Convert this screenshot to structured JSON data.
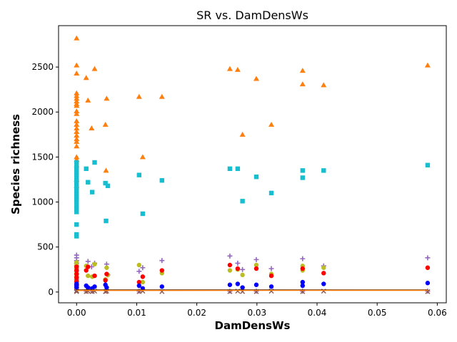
{
  "chart_data": {
    "type": "scatter",
    "title": "SR vs. DamDensWs",
    "xlabel": "DamDensWs",
    "ylabel": "Species richness",
    "xlim": [
      -0.003,
      0.0615
    ],
    "ylim": [
      -120,
      2960
    ],
    "xticks": [
      0.0,
      0.01,
      0.02,
      0.03,
      0.04,
      0.05,
      0.06
    ],
    "xtick_labels": [
      "0.00",
      "0.01",
      "0.02",
      "0.03",
      "0.04",
      "0.05",
      "0.06"
    ],
    "yticks": [
      0,
      500,
      1000,
      1500,
      2000,
      2500
    ],
    "ytick_labels": [
      "0",
      "500",
      "1000",
      "1500",
      "2000",
      "2500"
    ],
    "grid": false,
    "legend": false,
    "series": [
      {
        "color": "#ff7f0e",
        "marker": "triangle",
        "points": [
          [
            0.0,
            2820
          ],
          [
            0.0,
            2520
          ],
          [
            0.0,
            2430
          ],
          [
            0.0,
            2210
          ],
          [
            0.0,
            2180
          ],
          [
            0.0,
            2150
          ],
          [
            0.0,
            2120
          ],
          [
            0.0,
            2090
          ],
          [
            0.0,
            2070
          ],
          [
            0.0,
            2010
          ],
          [
            0.0,
            1980
          ],
          [
            0.0,
            1900
          ],
          [
            0.0,
            1860
          ],
          [
            0.0,
            1820
          ],
          [
            0.0,
            1780
          ],
          [
            0.0,
            1740
          ],
          [
            0.0,
            1700
          ],
          [
            0.0,
            1670
          ],
          [
            0.0,
            1620
          ],
          [
            0.0,
            1500
          ],
          [
            0.0,
            1470
          ],
          [
            0.0,
            1410
          ],
          [
            0.0,
            1250
          ],
          [
            0.0,
            1180
          ],
          [
            0.0016,
            2380
          ],
          [
            0.0019,
            2130
          ],
          [
            0.0025,
            1820
          ],
          [
            0.003,
            2480
          ],
          [
            0.0048,
            1860
          ],
          [
            0.005,
            2150
          ],
          [
            0.0049,
            1350
          ],
          [
            0.0104,
            2170
          ],
          [
            0.011,
            1500
          ],
          [
            0.0142,
            2170
          ],
          [
            0.0255,
            2480
          ],
          [
            0.0268,
            2470
          ],
          [
            0.0276,
            1750
          ],
          [
            0.0299,
            2370
          ],
          [
            0.0324,
            1860
          ],
          [
            0.0376,
            2460
          ],
          [
            0.0376,
            2310
          ],
          [
            0.0411,
            2300
          ],
          [
            0.0584,
            2520
          ]
        ]
      },
      {
        "color": "#17becf",
        "marker": "square",
        "points": [
          [
            0.0,
            1440
          ],
          [
            0.0,
            1390
          ],
          [
            0.0,
            1360
          ],
          [
            0.0,
            1330
          ],
          [
            0.0,
            1300
          ],
          [
            0.0,
            1270
          ],
          [
            0.0,
            1240
          ],
          [
            0.0,
            1210
          ],
          [
            0.0,
            1180
          ],
          [
            0.0,
            1150
          ],
          [
            0.0,
            1120
          ],
          [
            0.0,
            1090
          ],
          [
            0.0,
            1060
          ],
          [
            0.0,
            1030
          ],
          [
            0.0,
            1000
          ],
          [
            0.0,
            960
          ],
          [
            0.0,
            930
          ],
          [
            0.0,
            890
          ],
          [
            0.0,
            750
          ],
          [
            0.0,
            640
          ],
          [
            0.0,
            620
          ],
          [
            0.0016,
            1370
          ],
          [
            0.0019,
            1220
          ],
          [
            0.0026,
            1110
          ],
          [
            0.003,
            1440
          ],
          [
            0.0048,
            1210
          ],
          [
            0.0049,
            790
          ],
          [
            0.0052,
            1180
          ],
          [
            0.0104,
            1300
          ],
          [
            0.011,
            870
          ],
          [
            0.0142,
            1240
          ],
          [
            0.0255,
            1370
          ],
          [
            0.0268,
            1370
          ],
          [
            0.0276,
            1010
          ],
          [
            0.0299,
            1280
          ],
          [
            0.0324,
            1100
          ],
          [
            0.0376,
            1350
          ],
          [
            0.0376,
            1270
          ],
          [
            0.0411,
            1350
          ],
          [
            0.0584,
            1410
          ]
        ]
      },
      {
        "color": "#9467bd",
        "marker": "plus",
        "points": [
          [
            0.0,
            410
          ],
          [
            0.0,
            380
          ],
          [
            0.0,
            350
          ],
          [
            0.0,
            320
          ],
          [
            0.0,
            290
          ],
          [
            0.0,
            260
          ],
          [
            0.0,
            230
          ],
          [
            0.0,
            200
          ],
          [
            0.0,
            170
          ],
          [
            0.0,
            140
          ],
          [
            0.0,
            110
          ],
          [
            0.0,
            80
          ],
          [
            0.0,
            50
          ],
          [
            0.0,
            20
          ],
          [
            0.0019,
            340
          ],
          [
            0.0025,
            280
          ],
          [
            0.003,
            320
          ],
          [
            0.005,
            310
          ],
          [
            0.0052,
            190
          ],
          [
            0.0104,
            230
          ],
          [
            0.011,
            270
          ],
          [
            0.0142,
            350
          ],
          [
            0.0255,
            400
          ],
          [
            0.0268,
            320
          ],
          [
            0.0276,
            250
          ],
          [
            0.0299,
            360
          ],
          [
            0.0324,
            260
          ],
          [
            0.0376,
            370
          ],
          [
            0.0411,
            290
          ],
          [
            0.0584,
            380
          ],
          [
            0.0016,
            10
          ],
          [
            0.0026,
            10
          ],
          [
            0.0049,
            15
          ],
          [
            0.0104,
            10
          ],
          [
            0.0255,
            10
          ],
          [
            0.0299,
            10
          ],
          [
            0.0376,
            10
          ],
          [
            0.0584,
            10
          ]
        ]
      },
      {
        "color": "#bcbd22",
        "marker": "circle",
        "points": [
          [
            0.0,
            330
          ],
          [
            0.0,
            300
          ],
          [
            0.0,
            270
          ],
          [
            0.0,
            240
          ],
          [
            0.0,
            210
          ],
          [
            0.0,
            180
          ],
          [
            0.0,
            150
          ],
          [
            0.0,
            120
          ],
          [
            0.0,
            90
          ],
          [
            0.0,
            60
          ],
          [
            0.0016,
            290
          ],
          [
            0.0019,
            180
          ],
          [
            0.0026,
            170
          ],
          [
            0.003,
            310
          ],
          [
            0.0048,
            140
          ],
          [
            0.005,
            270
          ],
          [
            0.0052,
            190
          ],
          [
            0.0104,
            300
          ],
          [
            0.011,
            110
          ],
          [
            0.0142,
            210
          ],
          [
            0.0255,
            240
          ],
          [
            0.0268,
            250
          ],
          [
            0.0276,
            190
          ],
          [
            0.0299,
            300
          ],
          [
            0.0324,
            200
          ],
          [
            0.0376,
            290
          ],
          [
            0.0376,
            240
          ],
          [
            0.0411,
            270
          ],
          [
            0.0584,
            270
          ]
        ]
      },
      {
        "color": "#ff0000",
        "marker": "circle",
        "points": [
          [
            0.0,
            280
          ],
          [
            0.0,
            240
          ],
          [
            0.0,
            200
          ],
          [
            0.0,
            160
          ],
          [
            0.0,
            120
          ],
          [
            0.0,
            80
          ],
          [
            0.0016,
            240
          ],
          [
            0.0019,
            280
          ],
          [
            0.003,
            180
          ],
          [
            0.0048,
            130
          ],
          [
            0.005,
            200
          ],
          [
            0.0104,
            110
          ],
          [
            0.011,
            170
          ],
          [
            0.0142,
            240
          ],
          [
            0.0255,
            300
          ],
          [
            0.0268,
            260
          ],
          [
            0.0299,
            260
          ],
          [
            0.0324,
            180
          ],
          [
            0.0376,
            260
          ],
          [
            0.0411,
            210
          ],
          [
            0.0584,
            270
          ]
        ]
      },
      {
        "color": "#0000ff",
        "marker": "circle",
        "points": [
          [
            0.0,
            90
          ],
          [
            0.0,
            70
          ],
          [
            0.0,
            50
          ],
          [
            0.0,
            30
          ],
          [
            0.0016,
            70
          ],
          [
            0.0019,
            50
          ],
          [
            0.0026,
            40
          ],
          [
            0.003,
            60
          ],
          [
            0.0048,
            80
          ],
          [
            0.005,
            50
          ],
          [
            0.0104,
            70
          ],
          [
            0.011,
            40
          ],
          [
            0.0142,
            60
          ],
          [
            0.0255,
            80
          ],
          [
            0.0268,
            90
          ],
          [
            0.0276,
            50
          ],
          [
            0.0299,
            80
          ],
          [
            0.0324,
            60
          ],
          [
            0.0376,
            110
          ],
          [
            0.0376,
            70
          ],
          [
            0.0411,
            90
          ],
          [
            0.0584,
            100
          ]
        ]
      },
      {
        "color": "#8c564b",
        "marker": "x",
        "points": [
          [
            0.0,
            15
          ],
          [
            0.0,
            5
          ],
          [
            0.0016,
            5
          ],
          [
            0.0019,
            10
          ],
          [
            0.0026,
            5
          ],
          [
            0.003,
            10
          ],
          [
            0.0048,
            5
          ],
          [
            0.005,
            10
          ],
          [
            0.0104,
            5
          ],
          [
            0.011,
            10
          ],
          [
            0.0142,
            5
          ],
          [
            0.0255,
            5
          ],
          [
            0.0268,
            10
          ],
          [
            0.0276,
            5
          ],
          [
            0.0299,
            5
          ],
          [
            0.0324,
            10
          ],
          [
            0.0376,
            5
          ],
          [
            0.0411,
            10
          ],
          [
            0.0584,
            5
          ]
        ]
      }
    ],
    "lines": [
      {
        "color": "#000000",
        "x": [
          0.0,
          0.0584
        ],
        "y": [
          22,
          22
        ]
      },
      {
        "color": "#ff7f0e",
        "x": [
          0.0,
          0.0584
        ],
        "y": [
          18,
          19
        ]
      }
    ]
  }
}
